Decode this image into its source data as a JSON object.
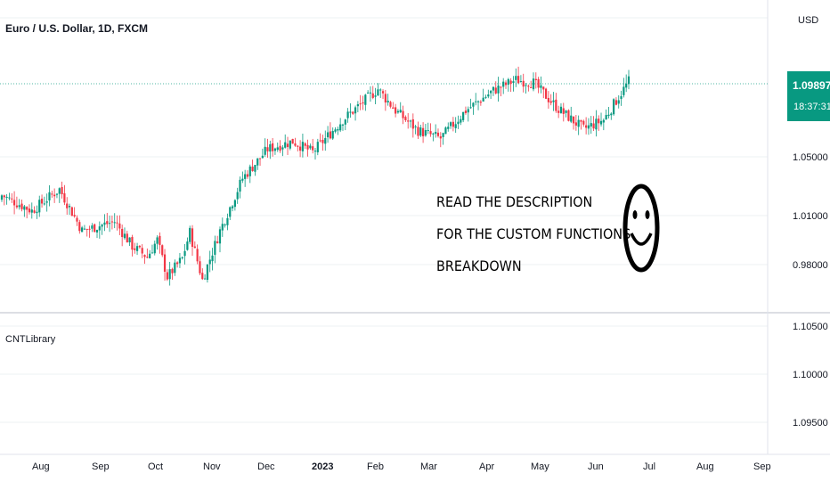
{
  "header": {
    "symbol_title": "Euro / U.S. Dollar, 1D, FXCM",
    "currency": "USD"
  },
  "price_badge": {
    "price": "1.09897",
    "countdown": "18:37:31",
    "color": "#089981"
  },
  "annotation": {
    "lines": [
      "READ THE DESCRIPTION",
      "FOR THE CUSTOM FUNCTIONS",
      "BREAKDOWN"
    ],
    "icon": "smiley-face-icon"
  },
  "colors": {
    "up": "#089981",
    "down": "#f23645",
    "grid": "#eef0f3",
    "last_price_line": "#089981"
  },
  "indicator_pane": {
    "title": "CNTLibrary",
    "y_ticks": [
      "1.10500",
      "1.10000",
      "1.09500"
    ]
  },
  "chart_data": {
    "type": "candlestick",
    "title": "Euro / U.S. Dollar, 1D, FXCM",
    "ylabel": "USD",
    "y_ticks": [
      "1.05000",
      "1.01000",
      "0.98000"
    ],
    "x_ticks": [
      "Aug",
      "Sep",
      "Oct",
      "Nov",
      "Dec",
      "2023",
      "Feb",
      "Mar",
      "Apr",
      "May",
      "Jun",
      "Jul",
      "Aug",
      "Sep"
    ],
    "last_price": 1.09897,
    "anchors": [
      {
        "i": 0,
        "c": 1.025
      },
      {
        "i": 12,
        "c": 1.015
      },
      {
        "i": 23,
        "c": 1.029
      },
      {
        "i": 32,
        "c": 1.002
      },
      {
        "i": 45,
        "c": 1.008
      },
      {
        "i": 52,
        "c": 0.992
      },
      {
        "i": 58,
        "c": 0.985
      },
      {
        "i": 62,
        "c": 0.996
      },
      {
        "i": 66,
        "c": 0.972
      },
      {
        "i": 72,
        "c": 0.984
      },
      {
        "i": 75,
        "c": 1.001
      },
      {
        "i": 80,
        "c": 0.97
      },
      {
        "i": 87,
        "c": 1.002
      },
      {
        "i": 96,
        "c": 1.036
      },
      {
        "i": 106,
        "c": 1.055
      },
      {
        "i": 116,
        "c": 1.06
      },
      {
        "i": 124,
        "c": 1.053
      },
      {
        "i": 136,
        "c": 1.074
      },
      {
        "i": 150,
        "c": 1.094
      },
      {
        "i": 157,
        "c": 1.08
      },
      {
        "i": 166,
        "c": 1.067
      },
      {
        "i": 175,
        "c": 1.062
      },
      {
        "i": 185,
        "c": 1.08
      },
      {
        "i": 196,
        "c": 1.093
      },
      {
        "i": 205,
        "c": 1.1
      },
      {
        "i": 212,
        "c": 1.098
      },
      {
        "i": 222,
        "c": 1.081
      },
      {
        "i": 232,
        "c": 1.068
      },
      {
        "i": 240,
        "c": 1.074
      },
      {
        "i": 250,
        "c": 1.099
      }
    ],
    "count": 251
  }
}
